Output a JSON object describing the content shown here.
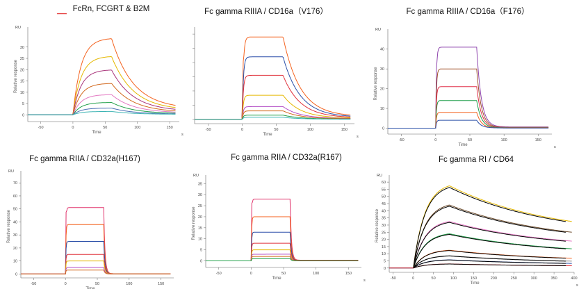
{
  "chart_data": [
    {
      "type": "line",
      "title": "FcRn, FCGRT & B2M",
      "ylabel": "Relative response",
      "unit": "RU",
      "xlabel": "Time",
      "xlabel_s": "s",
      "xlim": [
        -70,
        165
      ],
      "ylim": [
        -3,
        37
      ],
      "xticks": [
        -50,
        0,
        50,
        100,
        150
      ],
      "yticks": [
        0,
        5,
        10,
        15,
        20,
        25,
        30
      ],
      "kinetics": {
        "t_on": 0,
        "t_off": 60,
        "k_on": 0.08,
        "k_off": 0.03
      },
      "series": [
        {
          "color": "#f4621e",
          "plateau": 34,
          "end": 2.6
        },
        {
          "color": "#e5b800",
          "plateau": 26,
          "end": 2.0
        },
        {
          "color": "#a8337a",
          "plateau": 20,
          "end": 1.5
        },
        {
          "color": "#d2691e",
          "plateau": 14,
          "end": 1.1
        },
        {
          "color": "#e377c2",
          "plateau": 9,
          "end": 0.8
        },
        {
          "color": "#22a04a",
          "plateau": 5.5,
          "end": 0.5
        },
        {
          "color": "#4c6fb5",
          "plateau": 3,
          "end": 0.3
        },
        {
          "color": "#3bb3b3",
          "plateau": 1.5,
          "end": 0.2
        }
      ]
    },
    {
      "type": "line",
      "title": "Fc gamma RIIIA / CD16a（V176）",
      "ylabel": "",
      "unit": "",
      "xlabel": "Time",
      "xlabel_s": "s",
      "xlim": [
        -70,
        165
      ],
      "ylim": [
        -3,
        62
      ],
      "xticks": [
        -50,
        0,
        50,
        100,
        150
      ],
      "yticks": [],
      "kinetics": {
        "t_on": 0,
        "t_off": 60,
        "k_on": 0.6,
        "k_off": 0.04
      },
      "series": [
        {
          "color": "#f4621e",
          "plateau": 58,
          "end": 2.0
        },
        {
          "color": "#2a4fa8",
          "plateau": 44,
          "end": 1.5
        },
        {
          "color": "#e0303a",
          "plateau": 31,
          "end": 1.1
        },
        {
          "color": "#e5b800",
          "plateau": 17,
          "end": 0.8
        },
        {
          "color": "#b44fc6",
          "plateau": 9,
          "end": 0.5
        },
        {
          "color": "#d2691e",
          "plateau": 6,
          "end": 0.4
        },
        {
          "color": "#22a04a",
          "plateau": 3,
          "end": 0.2
        },
        {
          "color": "#3bb3b3",
          "plateau": 1.5,
          "end": 0.1
        }
      ]
    },
    {
      "type": "line",
      "title": "Fc gamma RIIIA / CD16a（F176）",
      "ylabel": "Relative response",
      "unit": "RU",
      "xlabel": "Time",
      "xlabel_s": "s",
      "xlim": [
        -70,
        170
      ],
      "ylim": [
        -3,
        48
      ],
      "xticks": [
        -50,
        0,
        50,
        100,
        150
      ],
      "yticks": [
        0,
        10,
        20,
        30,
        40
      ],
      "kinetics": {
        "t_on": 0,
        "t_off": 60,
        "k_on": 0.9,
        "k_off": 0.15
      },
      "series": [
        {
          "color": "#8e44ad",
          "plateau": 41,
          "end": 0.6
        },
        {
          "color": "#a0522d",
          "plateau": 30,
          "end": 0.4
        },
        {
          "color": "#e0304a",
          "plateau": 21,
          "end": 0.3
        },
        {
          "color": "#1e9e4a",
          "plateau": 14,
          "end": 0.2
        },
        {
          "color": "#f4621e",
          "plateau": 8,
          "end": 0.1
        },
        {
          "color": "#2a4fa8",
          "plateau": 4,
          "end": 0.1
        }
      ]
    },
    {
      "type": "line",
      "title": "Fc gamma RIIA / CD32a(H167)",
      "ylabel": "Relative response",
      "unit": "RU",
      "xlabel": "Time",
      "xlabel_s": "s",
      "xlim": [
        -70,
        170
      ],
      "ylim": [
        -3,
        76
      ],
      "xticks": [
        -50,
        0,
        50,
        100,
        150
      ],
      "yticks": [
        0,
        10,
        20,
        30,
        40,
        50,
        60,
        70
      ],
      "kinetics": {
        "t_on": 0,
        "t_off": 60,
        "k_on": 1.5,
        "k_off": 0.5
      },
      "series": [
        {
          "color": "#e0306a",
          "plateau": 51,
          "end": 0.2
        },
        {
          "color": "#f4621e",
          "plateau": 38,
          "end": 0.2
        },
        {
          "color": "#2a4fa8",
          "plateau": 25,
          "end": 0.1
        },
        {
          "color": "#e0303a",
          "plateau": 15,
          "end": 0.1
        },
        {
          "color": "#e5b800",
          "plateau": 10,
          "end": 0.1
        },
        {
          "color": "#b44fc6",
          "plateau": 5,
          "end": 0.0
        },
        {
          "color": "#d2691e",
          "plateau": 3,
          "end": 0.0
        }
      ]
    },
    {
      "type": "line",
      "title": "Fc gamma RIIA / CD32a(R167)",
      "ylabel": "Relative response",
      "unit": "RU",
      "xlabel": "Time",
      "xlabel_s": "s",
      "xlim": [
        -70,
        170
      ],
      "ylim": [
        -3,
        37
      ],
      "xticks": [
        -50,
        0,
        50,
        100,
        150
      ],
      "yticks": [
        0,
        5,
        10,
        15,
        20,
        25,
        30,
        35
      ],
      "kinetics": {
        "t_on": 0,
        "t_off": 60,
        "k_on": 1.5,
        "k_off": 0.5
      },
      "series": [
        {
          "color": "#e0306a",
          "plateau": 28,
          "end": 0.3
        },
        {
          "color": "#f4621e",
          "plateau": 20,
          "end": 0.2
        },
        {
          "color": "#2a4fa8",
          "plateau": 13,
          "end": 0.1
        },
        {
          "color": "#e0303a",
          "plateau": 8,
          "end": 0.1
        },
        {
          "color": "#e5b800",
          "plateau": 5,
          "end": 0.0
        },
        {
          "color": "#b44fc6",
          "plateau": 3,
          "end": 0.0
        },
        {
          "color": "#d2691e",
          "plateau": 2,
          "end": 0.0
        },
        {
          "color": "#22a04a",
          "plateau": 1,
          "end": 0.0
        }
      ]
    },
    {
      "type": "line",
      "title": "Fc gamma RI / CD64",
      "ylabel": "Relative response",
      "unit": "RU",
      "xlabel": "Time",
      "xlabel_s": "s",
      "xlim": [
        -60,
        400
      ],
      "ylim": [
        -3,
        62
      ],
      "xticks": [
        -50,
        0,
        50,
        100,
        150,
        200,
        250,
        300,
        350,
        400
      ],
      "yticks": [
        0,
        5,
        10,
        15,
        20,
        25,
        30,
        35,
        40,
        45,
        50,
        55,
        60
      ],
      "fit_color": "#000000",
      "kinetics": {
        "t_on": 0,
        "t_off": 90,
        "k_on": 0.035,
        "k_off": 0.004
      },
      "series": [
        {
          "color": "#e5b800",
          "plateau": 60,
          "end": 22
        },
        {
          "color": "#6b4a2a",
          "plateau": 46,
          "end": 17
        },
        {
          "color": "#e377c2",
          "plateau": 34,
          "end": 13
        },
        {
          "color": "#22a04a",
          "plateau": 25,
          "end": 9
        },
        {
          "color": "#f4621e",
          "plateau": 13,
          "end": 4.5
        },
        {
          "color": "#8c8c8c",
          "plateau": 9,
          "end": 3.2
        },
        {
          "color": "#2a4fa8",
          "plateau": 6,
          "end": 2.2
        },
        {
          "color": "#e0303a",
          "plateau": 3,
          "end": 1.1
        }
      ]
    }
  ]
}
